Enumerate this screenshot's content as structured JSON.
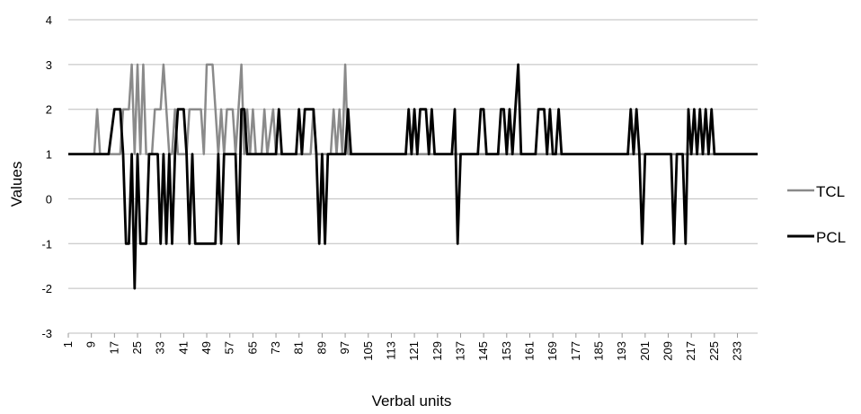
{
  "chart_data": {
    "type": "line",
    "title": "",
    "xlabel": "Verbal units",
    "ylabel": "Values",
    "ylim": [
      -3,
      4
    ],
    "yticks": [
      -3,
      -2,
      -1,
      0,
      1,
      2,
      3,
      4
    ],
    "xlim": [
      1,
      240
    ],
    "xticks": [
      1,
      9,
      17,
      25,
      33,
      41,
      49,
      57,
      65,
      73,
      81,
      89,
      97,
      105,
      113,
      121,
      129,
      137,
      145,
      153,
      161,
      169,
      177,
      185,
      193,
      201,
      209,
      217,
      225,
      233
    ],
    "grid": "horizontal",
    "legend_position": "right",
    "series": [
      {
        "name": "TCL",
        "color": "#8a8a8a",
        "points": [
          [
            1,
            1
          ],
          [
            10,
            1
          ],
          [
            11,
            2
          ],
          [
            12,
            1
          ],
          [
            19,
            1
          ],
          [
            20,
            2
          ],
          [
            22,
            2
          ],
          [
            23,
            3
          ],
          [
            24,
            1
          ],
          [
            25,
            3
          ],
          [
            26,
            1
          ],
          [
            27,
            3
          ],
          [
            28,
            1
          ],
          [
            30,
            1
          ],
          [
            31,
            2
          ],
          [
            33,
            2
          ],
          [
            34,
            3
          ],
          [
            35,
            2
          ],
          [
            36,
            1
          ],
          [
            37,
            1
          ],
          [
            38,
            2
          ],
          [
            39,
            1
          ],
          [
            42,
            1
          ],
          [
            43,
            2
          ],
          [
            47,
            2
          ],
          [
            48,
            1
          ],
          [
            49,
            3
          ],
          [
            51,
            3
          ],
          [
            52,
            2
          ],
          [
            53,
            1
          ],
          [
            54,
            2
          ],
          [
            55,
            1
          ],
          [
            56,
            2
          ],
          [
            58,
            2
          ],
          [
            59,
            1
          ],
          [
            61,
            3
          ],
          [
            62,
            1
          ],
          [
            63,
            2
          ],
          [
            64,
            1
          ],
          [
            65,
            2
          ],
          [
            66,
            1
          ],
          [
            68,
            1
          ],
          [
            69,
            2
          ],
          [
            70,
            1
          ],
          [
            72,
            2
          ],
          [
            73,
            1
          ],
          [
            75,
            1
          ],
          [
            85,
            1
          ],
          [
            86,
            2
          ],
          [
            87,
            1
          ],
          [
            92,
            1
          ],
          [
            93,
            2
          ],
          [
            94,
            1
          ],
          [
            95,
            2
          ],
          [
            96,
            1
          ],
          [
            97,
            3
          ],
          [
            98,
            1
          ],
          [
            240,
            1
          ]
        ]
      },
      {
        "name": "PCL",
        "color": "#000000",
        "points": [
          [
            1,
            1
          ],
          [
            15,
            1
          ],
          [
            17,
            2
          ],
          [
            19,
            2
          ],
          [
            20,
            1
          ],
          [
            21,
            -1
          ],
          [
            22,
            -1
          ],
          [
            23,
            1
          ],
          [
            24,
            -2
          ],
          [
            25,
            1
          ],
          [
            26,
            -1
          ],
          [
            28,
            -1
          ],
          [
            29,
            1
          ],
          [
            32,
            1
          ],
          [
            33,
            -1
          ],
          [
            34,
            1
          ],
          [
            35,
            -1
          ],
          [
            36,
            1
          ],
          [
            37,
            -1
          ],
          [
            38,
            1
          ],
          [
            39,
            2
          ],
          [
            41,
            2
          ],
          [
            42,
            1
          ],
          [
            43,
            -1
          ],
          [
            44,
            1
          ],
          [
            45,
            -1
          ],
          [
            52,
            -1
          ],
          [
            53,
            1
          ],
          [
            54,
            -1
          ],
          [
            55,
            1
          ],
          [
            59,
            1
          ],
          [
            60,
            -1
          ],
          [
            61,
            2
          ],
          [
            62,
            2
          ],
          [
            63,
            1
          ],
          [
            73,
            1
          ],
          [
            74,
            2
          ],
          [
            75,
            1
          ],
          [
            80,
            1
          ],
          [
            81,
            2
          ],
          [
            82,
            1
          ],
          [
            83,
            2
          ],
          [
            86,
            2
          ],
          [
            87,
            1
          ],
          [
            88,
            -1
          ],
          [
            89,
            1
          ],
          [
            90,
            -1
          ],
          [
            91,
            1
          ],
          [
            97,
            1
          ],
          [
            98,
            2
          ],
          [
            99,
            1
          ],
          [
            118,
            1
          ],
          [
            119,
            2
          ],
          [
            120,
            1
          ],
          [
            121,
            2
          ],
          [
            122,
            1
          ],
          [
            123,
            2
          ],
          [
            125,
            2
          ],
          [
            126,
            1
          ],
          [
            127,
            2
          ],
          [
            128,
            1
          ],
          [
            134,
            1
          ],
          [
            135,
            2
          ],
          [
            136,
            -1
          ],
          [
            137,
            1
          ],
          [
            143,
            1
          ],
          [
            144,
            2
          ],
          [
            145,
            2
          ],
          [
            146,
            1
          ],
          [
            150,
            1
          ],
          [
            151,
            2
          ],
          [
            152,
            2
          ],
          [
            153,
            1
          ],
          [
            154,
            2
          ],
          [
            155,
            1
          ],
          [
            156,
            2
          ],
          [
            157,
            3
          ],
          [
            158,
            1
          ],
          [
            163,
            1
          ],
          [
            164,
            2
          ],
          [
            166,
            2
          ],
          [
            167,
            1
          ],
          [
            168,
            2
          ],
          [
            169,
            1
          ],
          [
            170,
            1
          ],
          [
            171,
            2
          ],
          [
            172,
            1
          ],
          [
            195,
            1
          ],
          [
            196,
            2
          ],
          [
            197,
            1
          ],
          [
            198,
            2
          ],
          [
            199,
            1
          ],
          [
            200,
            -1
          ],
          [
            201,
            1
          ],
          [
            210,
            1
          ],
          [
            211,
            -1
          ],
          [
            212,
            1
          ],
          [
            214,
            1
          ],
          [
            215,
            -1
          ],
          [
            216,
            2
          ],
          [
            217,
            1
          ],
          [
            218,
            2
          ],
          [
            219,
            1
          ],
          [
            220,
            2
          ],
          [
            221,
            1
          ],
          [
            222,
            2
          ],
          [
            223,
            1
          ],
          [
            224,
            2
          ],
          [
            225,
            1
          ],
          [
            240,
            1
          ]
        ]
      }
    ]
  }
}
